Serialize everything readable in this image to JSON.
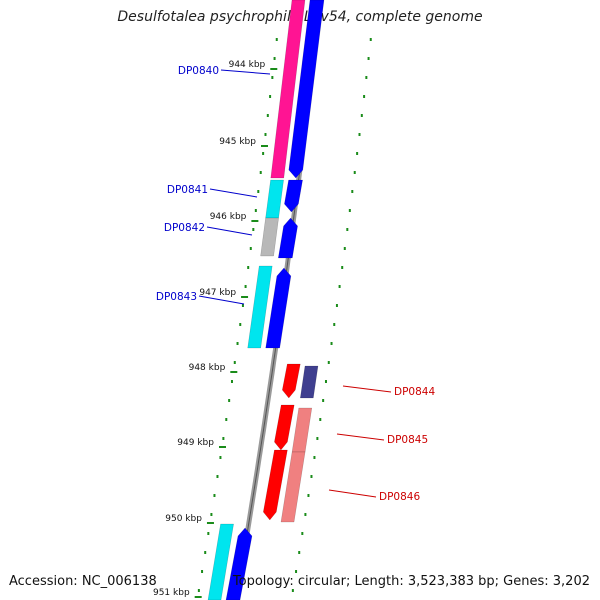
{
  "title": "Desulfotalea psychrophila LSv54, complete genome",
  "footer": {
    "accession": "Accession: NC_006138",
    "summary": "Topology: circular; Length: 3,523,383 bp; Genes: 3,202"
  },
  "ticks": [
    {
      "label": "944 kbp"
    },
    {
      "label": "945 kbp"
    },
    {
      "label": "946 kbp"
    },
    {
      "label": "947 kbp"
    },
    {
      "label": "948 kbp"
    },
    {
      "label": "949 kbp"
    },
    {
      "label": "950 kbp"
    },
    {
      "label": "951 kbp"
    }
  ],
  "genes": [
    {
      "id": "DP0840",
      "strand": "forward",
      "color": "#0000cc"
    },
    {
      "id": "DP0841",
      "strand": "forward",
      "color": "#0000cc"
    },
    {
      "id": "DP0842",
      "strand": "forward",
      "color": "#0000cc"
    },
    {
      "id": "DP0843",
      "strand": "forward",
      "color": "#0000cc"
    },
    {
      "id": "DP0844",
      "strand": "reverse",
      "color": "#cc0000"
    },
    {
      "id": "DP0845",
      "strand": "reverse",
      "color": "#cc0000"
    },
    {
      "id": "DP0846",
      "strand": "reverse",
      "color": "#cc0000"
    }
  ],
  "colors": {
    "backbone": "#888888",
    "cds_forward": "#0000ff",
    "cds_reverse": "#ff0000",
    "cog_magenta": "#ff1493",
    "cog_cyan": "#00e5ee",
    "cog_gray": "#b8b8b8",
    "cog_navy": "#3f3f8f",
    "cog_pink": "#f08080",
    "tick_green": "#1a8c1a"
  }
}
